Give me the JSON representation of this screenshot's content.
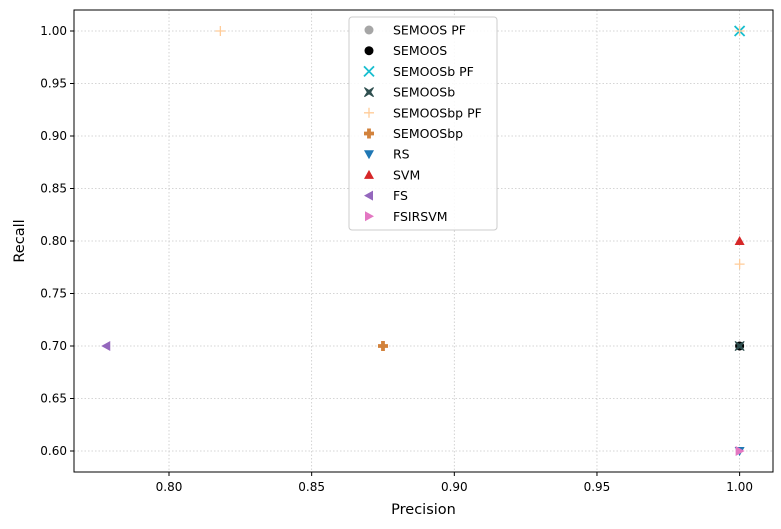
{
  "chart_data": {
    "type": "scatter",
    "title": "",
    "xlabel": "Precision",
    "ylabel": "Recall",
    "xlim": [
      0.7667,
      1.0117
    ],
    "ylim": [
      0.58,
      1.02
    ],
    "xticks": [
      "0.80",
      "0.85",
      "0.90",
      "0.95",
      "1.00"
    ],
    "yticks": [
      "0.60",
      "0.65",
      "0.70",
      "0.75",
      "0.80",
      "0.85",
      "0.90",
      "0.95",
      "1.00"
    ],
    "grid": true,
    "legend_position": "top-center",
    "series": [
      {
        "name": "SEMOOS PF",
        "marker": "circle",
        "color": "#a6a6a6",
        "points": [
          [
            1.0,
            0.7
          ]
        ]
      },
      {
        "name": "SEMOOS",
        "marker": "circle",
        "color": "#000000",
        "points": [
          [
            1.0,
            0.7
          ]
        ]
      },
      {
        "name": "SEMOOSb PF",
        "marker": "x",
        "color": "#17becf",
        "points": [
          [
            1.0,
            1.0
          ]
        ]
      },
      {
        "name": "SEMOOSb",
        "marker": "X",
        "color": "#2f4f4f",
        "points": [
          [
            1.0,
            0.7
          ]
        ]
      },
      {
        "name": "SEMOOSbp PF",
        "marker": "plus-thin",
        "color": "#ffcc99",
        "points": [
          [
            0.818,
            1.0
          ],
          [
            1.0,
            0.778
          ],
          [
            1.0,
            1.0
          ]
        ]
      },
      {
        "name": "SEMOOSbp",
        "marker": "plus-thick",
        "color": "#d2823c",
        "points": [
          [
            0.875,
            0.7
          ]
        ]
      },
      {
        "name": "RS",
        "marker": "triangle-down",
        "color": "#1f77b4",
        "points": [
          [
            1.0,
            0.6
          ]
        ]
      },
      {
        "name": "SVM",
        "marker": "triangle-up",
        "color": "#d62728",
        "points": [
          [
            1.0,
            0.8
          ]
        ]
      },
      {
        "name": "FS",
        "marker": "triangle-left",
        "color": "#9467bd",
        "points": [
          [
            0.778,
            0.7
          ]
        ]
      },
      {
        "name": "FSIRSVM",
        "marker": "triangle-right",
        "color": "#e377c2",
        "points": [
          [
            1.0,
            0.6
          ]
        ]
      }
    ]
  }
}
